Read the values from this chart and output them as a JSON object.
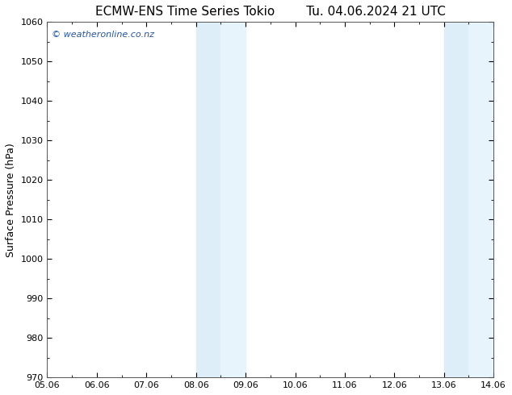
{
  "title_left": "ECMW-ENS Time Series Tokio",
  "title_right": "Tu. 04.06.2024 21 UTC",
  "ylabel": "Surface Pressure (hPa)",
  "ylim": [
    970,
    1060
  ],
  "yticks": [
    970,
    980,
    990,
    1000,
    1010,
    1020,
    1030,
    1040,
    1050,
    1060
  ],
  "xlim": [
    0,
    9
  ],
  "xtick_labels": [
    "05.06",
    "06.06",
    "07.06",
    "08.06",
    "09.06",
    "10.06",
    "11.06",
    "12.06",
    "13.06",
    "14.06"
  ],
  "xtick_positions": [
    0,
    1,
    2,
    3,
    4,
    5,
    6,
    7,
    8,
    9
  ],
  "shaded_regions": [
    {
      "xmin": 3.0,
      "xmax": 3.5,
      "color": "#ddeef8"
    },
    {
      "xmin": 3.5,
      "xmax": 4.0,
      "color": "#e8f4fc"
    },
    {
      "xmin": 8.0,
      "xmax": 8.5,
      "color": "#ddeef8"
    },
    {
      "xmin": 8.5,
      "xmax": 9.0,
      "color": "#e8f4fc"
    }
  ],
  "watermark_text": "© weatheronline.co.nz",
  "watermark_color": "#2255aa",
  "bg_color": "#ffffff",
  "plot_bg_color": "#ffffff",
  "border_color": "#555555",
  "title_fontsize": 11,
  "axis_label_fontsize": 9,
  "tick_fontsize": 8,
  "watermark_fontsize": 8
}
